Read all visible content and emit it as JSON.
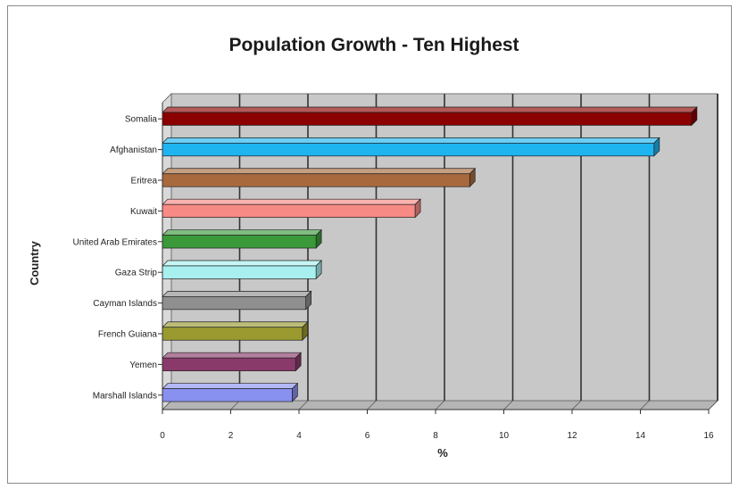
{
  "chart_data": {
    "type": "bar",
    "orientation": "horizontal",
    "style": "3d",
    "title": "Population Growth - Ten Highest",
    "xlabel": "%",
    "ylabel": "Country",
    "xlim": [
      0,
      16
    ],
    "xticks": [
      "0",
      "2",
      "4",
      "6",
      "8",
      "10",
      "12",
      "14",
      "16"
    ],
    "grid": true,
    "legend": "none",
    "categories": [
      "Somalia",
      "Afghanistan",
      "Eritrea",
      "Kuwait",
      "United Arab Emirates",
      "Gaza Strip",
      "Cayman Islands",
      "French Guiana",
      "Yemen",
      "Marshall Islands"
    ],
    "values": [
      15.5,
      14.4,
      9.0,
      7.4,
      4.5,
      4.5,
      4.2,
      4.1,
      3.9,
      3.8
    ],
    "colors": [
      "#8b0000",
      "#1eb4f0",
      "#a86a3c",
      "#f88a85",
      "#3a9a3a",
      "#a8f0f0",
      "#8f8f8f",
      "#9a9a30",
      "#8a3a6a",
      "#8890f0"
    ],
    "plot_background": "#c8c8c8",
    "wall_color": "#d9d9d9"
  }
}
